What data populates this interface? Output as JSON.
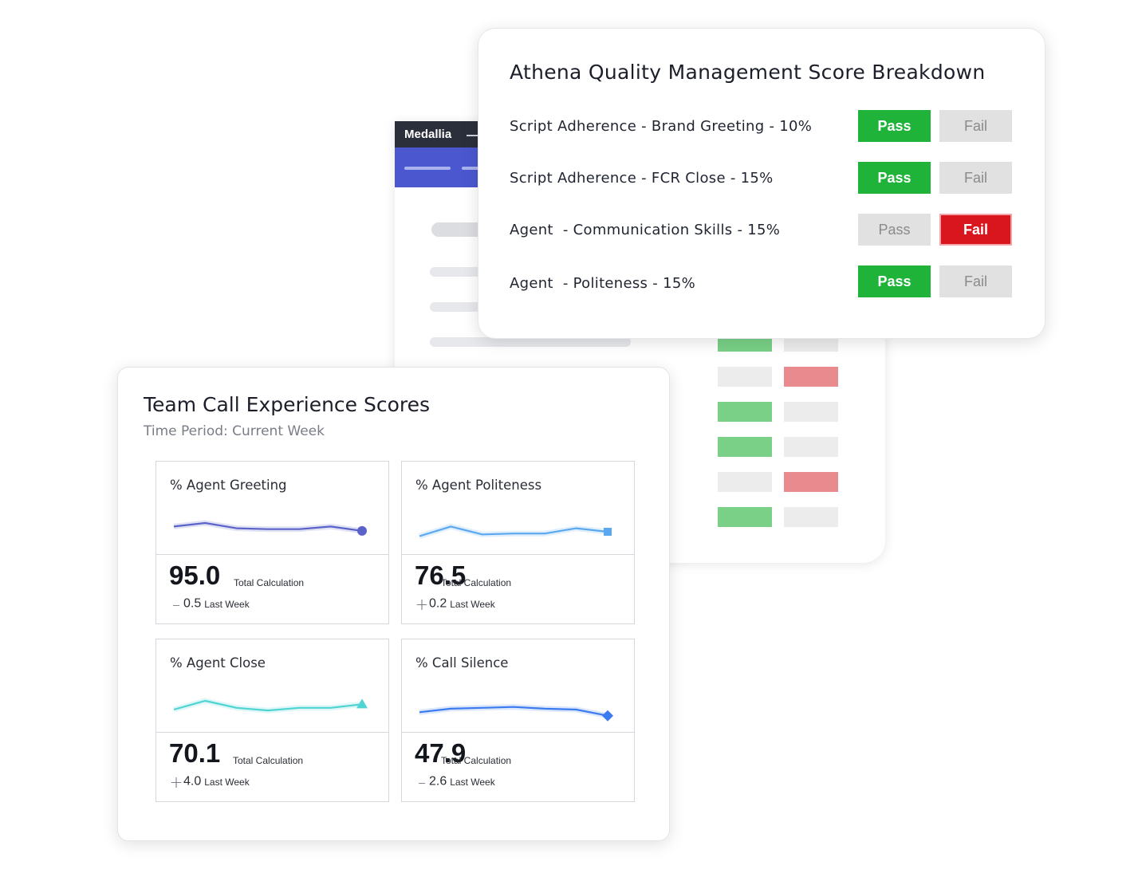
{
  "background_app": {
    "brand": "Medallia",
    "grid_boxes": [
      [
        "pass",
        "neutral"
      ],
      [
        "neutral",
        "fail"
      ],
      [
        "pass",
        "neutral"
      ],
      [
        "pass",
        "neutral"
      ],
      [
        "neutral",
        "fail"
      ],
      [
        "pass",
        "neutral"
      ]
    ]
  },
  "breakdown": {
    "title": "Athena Quality Management Score Breakdown",
    "rows": [
      {
        "label": "Script Adherence - Brand Greeting - 10%",
        "pass_label": "Pass",
        "fail_label": "Fail",
        "selected": "pass"
      },
      {
        "label": "Script Adherence - FCR Close - 15%",
        "pass_label": "Pass",
        "fail_label": "Fail",
        "selected": "pass"
      },
      {
        "label": "Agent  - Communication Skills - 15%",
        "pass_label": "Pass",
        "fail_label": "Fail",
        "selected": "fail"
      },
      {
        "label": "Agent  - Politeness - 15%",
        "pass_label": "Pass",
        "fail_label": "Fail",
        "selected": "pass"
      }
    ],
    "colors": {
      "pass": "#1fb33a",
      "fail": "#d9161e",
      "off": "#e1e1e1"
    }
  },
  "team": {
    "title": "Team Call Experience Scores",
    "subtitle": "Time Period: Current Week",
    "tiles": [
      {
        "name": "% Agent Greeting",
        "value": "95.0",
        "total_label": "Total Calculation",
        "delta_sign": "–",
        "delta_value": "0.5",
        "delta_label": "Last Week",
        "color": "#5b63c9",
        "marker": "circle",
        "trend": [
          66,
          70,
          64,
          63,
          63,
          66,
          61
        ]
      },
      {
        "name": "% Agent Politeness",
        "value": "76.5",
        "total_label": "Total Calculation",
        "delta_sign": "+",
        "delta_value": "0.2",
        "delta_label": "Last Week",
        "color": "#5aa8f0",
        "marker": "square",
        "trend": [
          55,
          66,
          57,
          58,
          58,
          64,
          60
        ]
      },
      {
        "name": "% Agent Close",
        "value": "70.1",
        "total_label": "Total Calculation",
        "delta_sign": "+",
        "delta_value": "4.0",
        "delta_label": "Last Week",
        "color": "#4fd3d3",
        "marker": "triangle",
        "trend": [
          60,
          70,
          62,
          59,
          62,
          62,
          66
        ]
      },
      {
        "name": "% Call Silence",
        "value": "47.9",
        "total_label": "Total Calculation",
        "delta_sign": "–",
        "delta_value": "2.6",
        "delta_label": "Last Week",
        "color": "#3b7bf0",
        "marker": "diamond",
        "trend": [
          57,
          61,
          62,
          63,
          61,
          60,
          53
        ]
      }
    ]
  }
}
